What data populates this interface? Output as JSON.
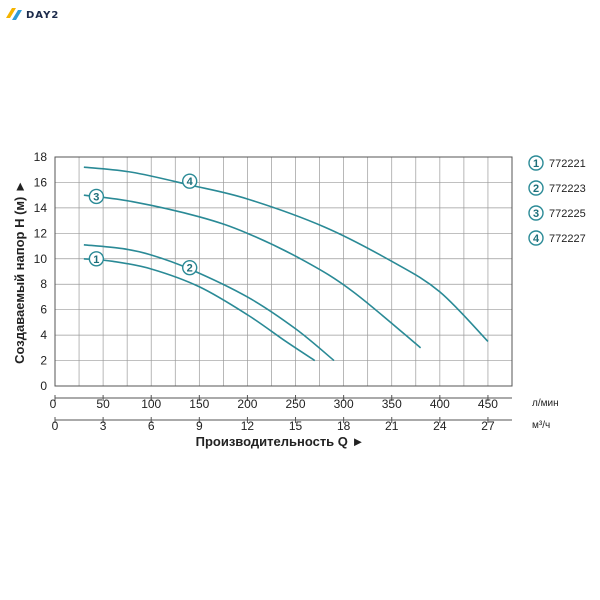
{
  "logo": {
    "text": "DAY2",
    "icon": "day2-logo-icon",
    "colors": [
      "#f5b400",
      "#2f9bd6"
    ]
  },
  "chart_data": {
    "type": "line",
    "title": "",
    "ylabel": "Создаваемый напор H (м) ►",
    "xlabel": "Производительность Q ►",
    "ylim": [
      0,
      18
    ],
    "yticks": [
      0,
      2,
      4,
      6,
      8,
      10,
      12,
      14,
      16,
      18
    ],
    "xlim_lmin": [
      0,
      475
    ],
    "xticks_lmin": [
      0,
      50,
      100,
      150,
      200,
      250,
      300,
      350,
      400,
      450
    ],
    "xticks_m3h": [
      0,
      3,
      6,
      9,
      12,
      15,
      18,
      21,
      24,
      27
    ],
    "x_unit_lmin": "л/мин",
    "x_unit_m3h": "м³/ч",
    "grid": true,
    "legend_position": "right",
    "line_color": "#2a8a96",
    "series": [
      {
        "name": "772221",
        "marker": "1",
        "x": [
          30,
          60,
          100,
          150,
          200,
          240,
          270
        ],
        "y": [
          10,
          9.8,
          9.2,
          7.8,
          5.6,
          3.5,
          2
        ]
      },
      {
        "name": "772223",
        "marker": "2",
        "x": [
          30,
          70,
          100,
          140,
          200,
          250,
          290
        ],
        "y": [
          11.1,
          10.8,
          10.3,
          9.2,
          7,
          4.5,
          2
        ]
      },
      {
        "name": "772225",
        "marker": "3",
        "x": [
          30,
          80,
          150,
          200,
          260,
          310,
          380
        ],
        "y": [
          15,
          14.5,
          13.3,
          12,
          9.8,
          7.4,
          3
        ]
      },
      {
        "name": "772227",
        "marker": "4",
        "x": [
          30,
          80,
          140,
          200,
          280,
          350,
          400,
          450
        ],
        "y": [
          17.2,
          16.8,
          15.8,
          14.7,
          12.5,
          9.8,
          7.4,
          3.5
        ]
      }
    ],
    "marker_positions": [
      {
        "marker": "1",
        "x": 43,
        "y": 10
      },
      {
        "marker": "2",
        "x": 140,
        "y": 9.3
      },
      {
        "marker": "3",
        "x": 43,
        "y": 14.9
      },
      {
        "marker": "4",
        "x": 140,
        "y": 16.1
      }
    ]
  }
}
